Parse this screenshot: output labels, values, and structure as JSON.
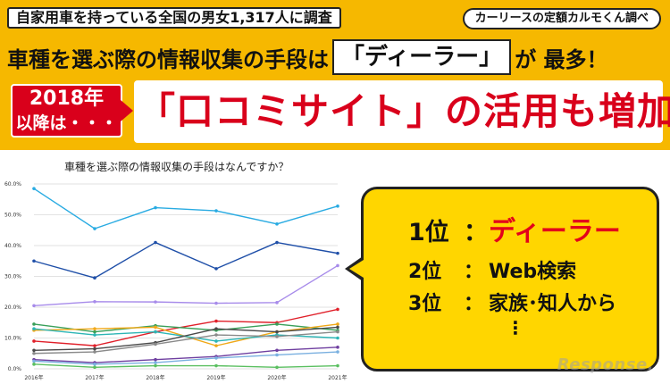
{
  "banner": {
    "survey": "自家用車を持っている全国の男女1,317人に調査",
    "source": "カーリースの定額カルモくん調べ",
    "headline_before": "車種を選ぶ際の情報収集の手段は",
    "headline_highlight": "「ディーラー」",
    "headline_after": "が 最多！",
    "year_line1": "2018年",
    "year_line2": "以降は・・・",
    "big_text": "「口コミサイト」の活用も増加"
  },
  "ranking": {
    "items": [
      {
        "rank": "1位",
        "colon": "：",
        "answer": "ディーラー"
      },
      {
        "rank": "2位",
        "colon": "：",
        "answer": "Web検索"
      },
      {
        "rank": "3位",
        "colon": "：",
        "answer": "家族･知人から"
      }
    ],
    "more": "⋮"
  },
  "watermark": "Response.",
  "colors": {
    "banner_bg": "#f6b800",
    "accent_red": "#d9001b",
    "callout_bg": "#ffd600"
  },
  "chart_data": {
    "type": "line",
    "title": "車種を選ぶ際の情報収集の手段はなんですか？",
    "x": [
      "2016年",
      "2017年",
      "2018年",
      "2019年",
      "2020年",
      "2021年"
    ],
    "ylim": [
      0,
      60
    ],
    "yticks": [
      "0.0%",
      "10.0%",
      "20.0%",
      "30.0%",
      "40.0%",
      "50.0%",
      "60.0%"
    ],
    "grid": true,
    "legend": "none",
    "series": [
      {
        "color": "#29abe2",
        "values": [
          58.5,
          45.5,
          52.3,
          51.3,
          47.0,
          52.8
        ]
      },
      {
        "color": "#1f4fa8",
        "values": [
          35.0,
          29.5,
          41.0,
          32.5,
          41.0,
          37.5
        ]
      },
      {
        "color": "#a78bea",
        "values": [
          20.5,
          21.8,
          21.7,
          21.3,
          21.5,
          33.5
        ]
      },
      {
        "color": "#e0202a",
        "values": [
          9.0,
          7.5,
          12.0,
          15.5,
          15.0,
          19.3
        ]
      },
      {
        "color": "#3aa05a",
        "values": [
          14.5,
          12.0,
          14.0,
          12.5,
          14.5,
          12.5
        ]
      },
      {
        "color": "#f0a818",
        "values": [
          12.5,
          13.0,
          13.5,
          7.5,
          12.0,
          14.5
        ]
      },
      {
        "color": "#2cb5b5",
        "values": [
          13.0,
          11.0,
          12.0,
          9.0,
          11.0,
          10.0
        ]
      },
      {
        "color": "#4a4a4a",
        "values": [
          6.0,
          6.5,
          8.5,
          13.0,
          12.0,
          13.5
        ]
      },
      {
        "color": "#8a8a8a",
        "values": [
          5.0,
          5.5,
          8.0,
          11.0,
          10.5,
          12.0
        ]
      },
      {
        "color": "#6f3fa0",
        "values": [
          3.0,
          2.0,
          3.0,
          4.0,
          6.0,
          7.0
        ]
      },
      {
        "color": "#7ab0e0",
        "values": [
          2.5,
          1.5,
          2.0,
          3.5,
          4.5,
          5.5
        ]
      },
      {
        "color": "#5abf60",
        "values": [
          1.5,
          0.5,
          1.0,
          1.0,
          0.5,
          1.0
        ]
      }
    ]
  }
}
